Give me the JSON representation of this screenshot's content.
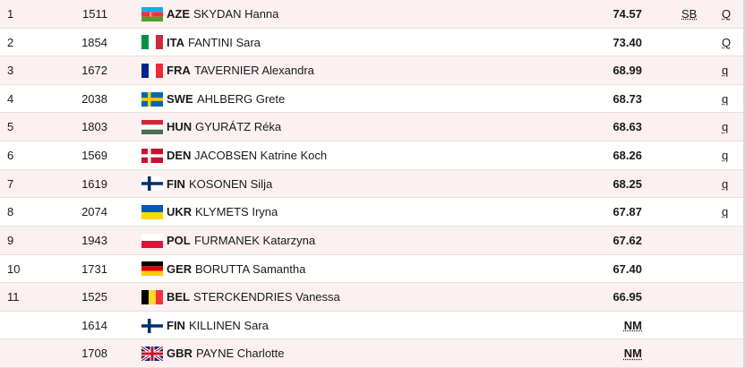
{
  "table": {
    "rows": [
      {
        "rank": "1",
        "bib": "1511",
        "country": "AZE",
        "name": "SKYDAN Hanna",
        "mark": "74.57",
        "note": "SB",
        "qualification": "Q"
      },
      {
        "rank": "2",
        "bib": "1854",
        "country": "ITA",
        "name": "FANTINI Sara",
        "mark": "73.40",
        "note": null,
        "qualification": "Q"
      },
      {
        "rank": "3",
        "bib": "1672",
        "country": "FRA",
        "name": "TAVERNIER Alexandra",
        "mark": "68.99",
        "note": null,
        "qualification": "q"
      },
      {
        "rank": "4",
        "bib": "2038",
        "country": "SWE",
        "name": "AHLBERG Grete",
        "mark": "68.73",
        "note": null,
        "qualification": "q"
      },
      {
        "rank": "5",
        "bib": "1803",
        "country": "HUN",
        "name": "GYURÁTZ Réka",
        "mark": "68.63",
        "note": null,
        "qualification": "q"
      },
      {
        "rank": "6",
        "bib": "1569",
        "country": "DEN",
        "name": "JACOBSEN Katrine Koch",
        "mark": "68.26",
        "note": null,
        "qualification": "q"
      },
      {
        "rank": "7",
        "bib": "1619",
        "country": "FIN",
        "name": "KOSONEN Silja",
        "mark": "68.25",
        "note": null,
        "qualification": "q"
      },
      {
        "rank": "8",
        "bib": "2074",
        "country": "UKR",
        "name": "KLYMETS Iryna",
        "mark": "67.87",
        "note": null,
        "qualification": "q"
      },
      {
        "rank": "9",
        "bib": "1943",
        "country": "POL",
        "name": "FURMANEK Katarzyna",
        "mark": "67.62",
        "note": null,
        "qualification": null
      },
      {
        "rank": "10",
        "bib": "1731",
        "country": "GER",
        "name": "BORUTTA Samantha",
        "mark": "67.40",
        "note": null,
        "qualification": null
      },
      {
        "rank": "11",
        "bib": "1525",
        "country": "BEL",
        "name": "STERCKENDRIES Vanessa",
        "mark": "66.95",
        "note": null,
        "qualification": null
      },
      {
        "rank": null,
        "bib": "1614",
        "country": "FIN",
        "name": "KILLINEN Sara",
        "mark": "NM",
        "note": null,
        "qualification": null
      },
      {
        "rank": null,
        "bib": "1708",
        "country": "GBR",
        "name": "PAYNE Charlotte",
        "mark": "NM",
        "note": null,
        "qualification": null
      }
    ]
  }
}
